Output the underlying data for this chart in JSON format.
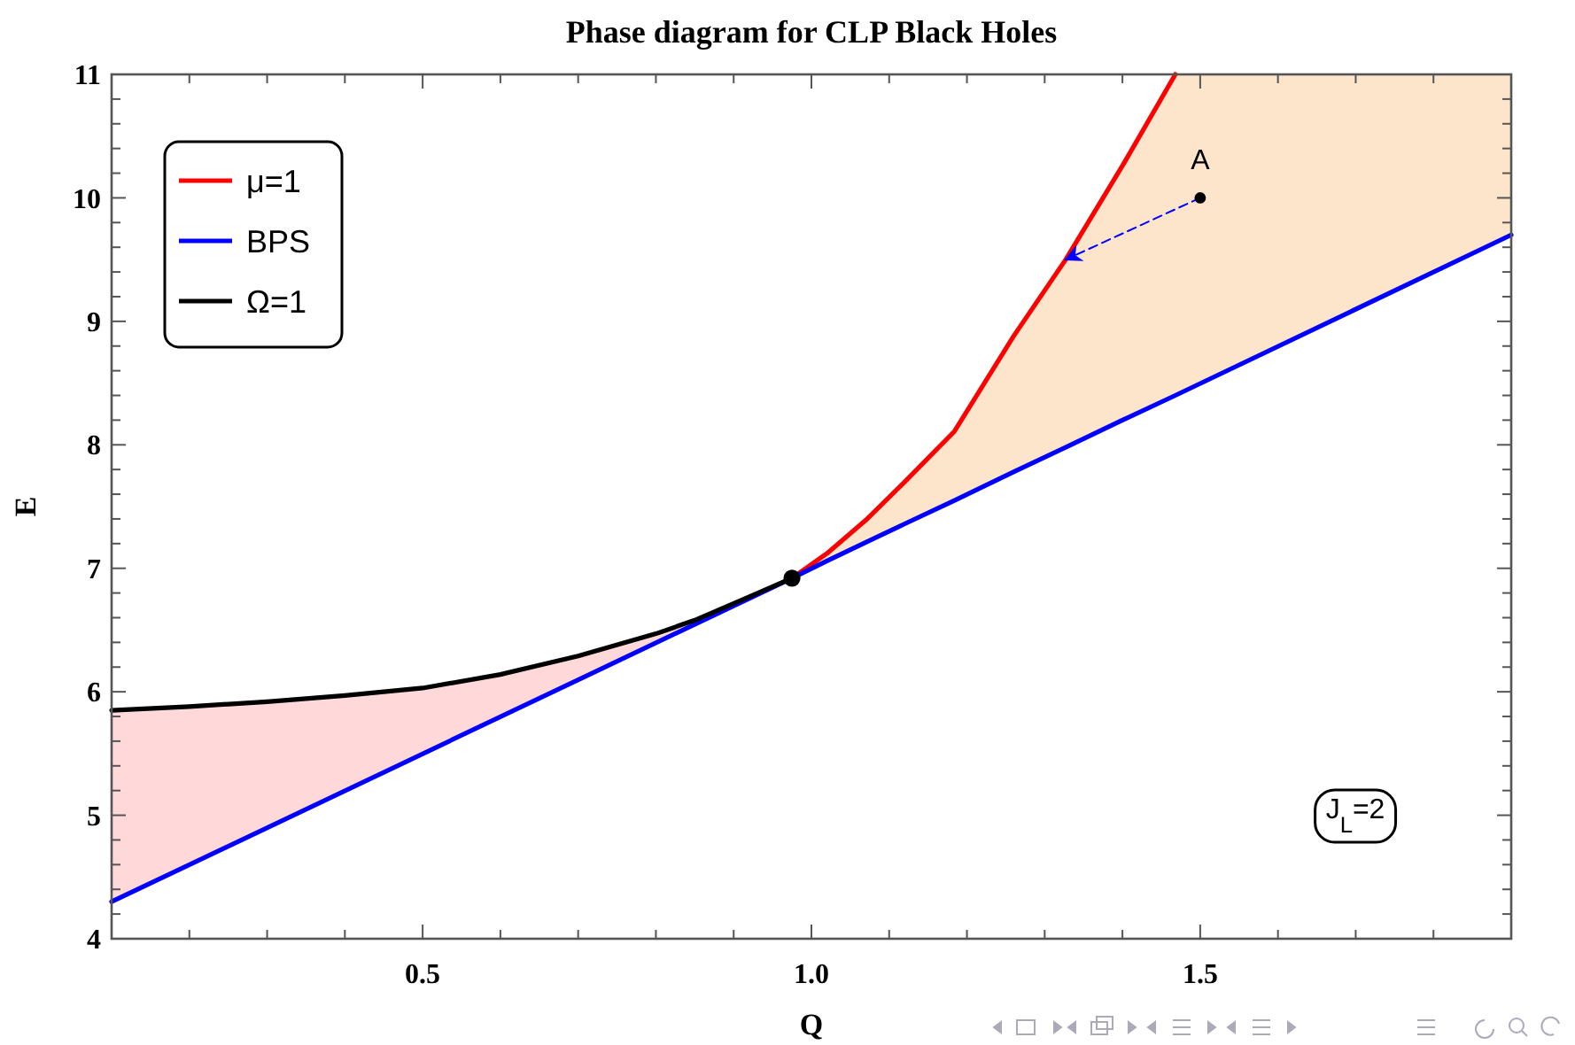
{
  "chart_data": {
    "type": "line",
    "title": "Phase diagram for CLP Black Holes",
    "xlabel": "Q",
    "ylabel": "E",
    "xlim": [
      0.1,
      1.9
    ],
    "ylim": [
      4,
      11
    ],
    "xticks": [
      {
        "value": 0.1,
        "label": null
      },
      {
        "value": 0.2,
        "label": null
      },
      {
        "value": 0.3,
        "label": null
      },
      {
        "value": 0.4,
        "label": null
      },
      0.5,
      {
        "value": 0.6,
        "label": null
      },
      {
        "value": 0.7,
        "label": null
      },
      {
        "value": 0.8,
        "label": null
      },
      {
        "value": 0.9,
        "label": null
      },
      {
        "value": 1,
        "label": "1.0"
      },
      {
        "value": 1.1,
        "label": null
      },
      {
        "value": 1.2,
        "label": null
      },
      {
        "value": 1.3,
        "label": null
      },
      {
        "value": 1.4,
        "label": null
      },
      1.5,
      {
        "value": 1.6,
        "label": null
      },
      {
        "value": 1.7,
        "label": null
      },
      {
        "value": 1.8,
        "label": null
      },
      {
        "value": 1.9,
        "label": null
      }
    ],
    "yticks": [
      4,
      {
        "value": 4.2,
        "label": null
      },
      {
        "value": 4.4,
        "label": null
      },
      {
        "value": 4.6,
        "label": null
      },
      {
        "value": 4.8,
        "label": null
      },
      5,
      {
        "value": 5.2,
        "label": null
      },
      {
        "value": 5.4,
        "label": null
      },
      {
        "value": 5.6,
        "label": null
      },
      {
        "value": 5.8,
        "label": null
      },
      6,
      {
        "value": 6.2,
        "label": null
      },
      {
        "value": 6.4,
        "label": null
      },
      {
        "value": 6.6,
        "label": null
      },
      {
        "value": 6.8,
        "label": null
      },
      7,
      {
        "value": 7.2,
        "label": null
      },
      {
        "value": 7.4,
        "label": null
      },
      {
        "value": 7.6,
        "label": null
      },
      {
        "value": 7.8,
        "label": null
      },
      8,
      {
        "value": 8.2,
        "label": null
      },
      {
        "value": 8.4,
        "label": null
      },
      {
        "value": 8.6,
        "label": null
      },
      {
        "value": 8.8,
        "label": null
      },
      9,
      {
        "value": 9.2,
        "label": null
      },
      {
        "value": 9.4,
        "label": null
      },
      {
        "value": 9.6,
        "label": null
      },
      {
        "value": 9.8,
        "label": null
      },
      10,
      {
        "value": 10.2,
        "label": null
      },
      {
        "value": 10.4,
        "label": null
      },
      {
        "value": 10.6,
        "label": null
      },
      {
        "value": 10.8,
        "label": null
      },
      11
    ],
    "grid": false,
    "legend": "top left",
    "series": [
      {
        "name": "μ=1",
        "color": "#ff0000",
        "x": [
          0.975,
          1.02,
          1.07,
          1.12,
          1.184,
          1.26,
          1.327,
          1.4,
          1.468
        ],
        "values": [
          6.92,
          7.12,
          7.39,
          7.7,
          8.11,
          8.88,
          9.5,
          10.26,
          11
        ]
      },
      {
        "name": "BPS",
        "color": "#0000ff",
        "x": [
          0.1,
          0.975,
          1.02,
          1.07,
          1.12,
          1.184,
          1.26,
          1.327,
          1.4,
          1.468,
          1.9
        ],
        "values": [
          4.3,
          6.92,
          7.06,
          7.21,
          7.36,
          7.55,
          7.78,
          7.98,
          8.2,
          8.4,
          9.7
        ],
        "lower": [
          null,
          6.92,
          7.06,
          7.21,
          7.36,
          7.55,
          7.78,
          7.98,
          8.2,
          8.4,
          9.7
        ],
        "upper": [
          null,
          6.92,
          7.12,
          7.39,
          7.7,
          8.11,
          8.88,
          9.5,
          10.26,
          11,
          11
        ]
      },
      {
        "name": "Ω=1",
        "color": "#000000",
        "x": [
          0.1,
          0.2,
          0.3,
          0.4,
          0.5,
          0.6,
          0.7,
          0.8,
          0.85,
          0.92,
          0.975
        ],
        "values": [
          5.85,
          5.88,
          5.92,
          5.97,
          6.03,
          6.14,
          6.29,
          6.47,
          6.58,
          6.77,
          6.92
        ],
        "lower": [
          4.3,
          4.6,
          4.9,
          5.2,
          5.5,
          5.8,
          6.1,
          6.4,
          6.55,
          6.76,
          6.92
        ],
        "upper": [
          5.85,
          5.88,
          5.92,
          5.97,
          6.03,
          6.14,
          6.29,
          6.47,
          6.58,
          6.77,
          6.92
        ]
      },
      {
        "line_style": "dashed",
        "color": "#0000ff",
        "x": [
          1.5,
          1.327
        ],
        "values": [
          10,
          9.5
        ]
      },
      {
        "type": "scatter",
        "color": "#000000",
        "x": [
          0.975
        ],
        "values": [
          6.92
        ]
      },
      {
        "type": "scatter",
        "color": "#000000",
        "x": [
          1.5
        ],
        "values": [
          10
        ]
      }
    ],
    "annotations": [
      {
        "text": "A",
        "x": 1.5,
        "y": 10
      },
      "J$_{L}$=2"
    ]
  }
}
